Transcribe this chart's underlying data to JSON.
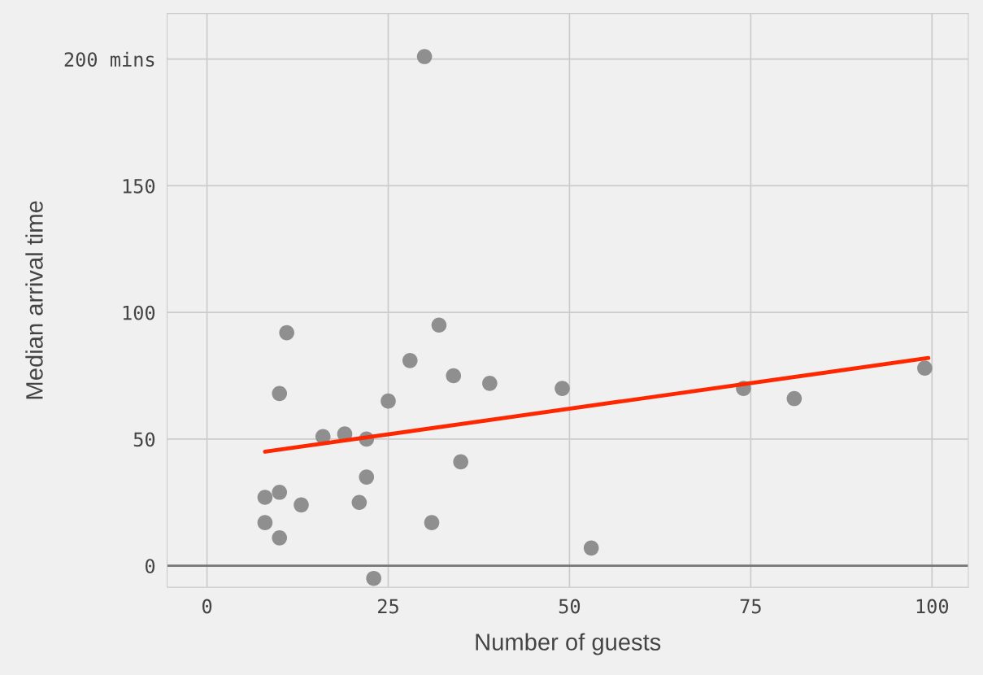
{
  "chart_data": {
    "type": "scatter",
    "xlabel": "Number of guests",
    "ylabel": "Median arrival time",
    "xlim": [
      -5.5,
      105
    ],
    "ylim": [
      -8.5,
      218
    ],
    "xticks": [
      0,
      25,
      50,
      75,
      100
    ],
    "yticks": [
      0,
      50,
      100,
      150,
      {
        "value": 200,
        "label": "200 mins"
      }
    ],
    "grid": true,
    "marker": "circle",
    "ref_lines": [
      {
        "axis": "y",
        "value": 0,
        "color": "#777777"
      }
    ],
    "series": [
      {
        "color": "#8f8f8f",
        "x": [
          8,
          8,
          10,
          10,
          10,
          11,
          13,
          16,
          19,
          21,
          22,
          22,
          23,
          25,
          28,
          30,
          31,
          32,
          34,
          35,
          39,
          49,
          53,
          74,
          81,
          99
        ],
        "values": [
          27,
          17,
          68,
          29,
          11,
          92,
          24,
          51,
          52,
          25,
          50,
          35,
          -5,
          65,
          81,
          201,
          17,
          95,
          75,
          41,
          72,
          70,
          7,
          70,
          66,
          78
        ]
      },
      {
        "type": "line",
        "color": "#ff2700",
        "x": [
          8,
          99.5
        ],
        "values": [
          45,
          82
        ],
        "marker": "none",
        "line_style": "solid"
      }
    ]
  }
}
